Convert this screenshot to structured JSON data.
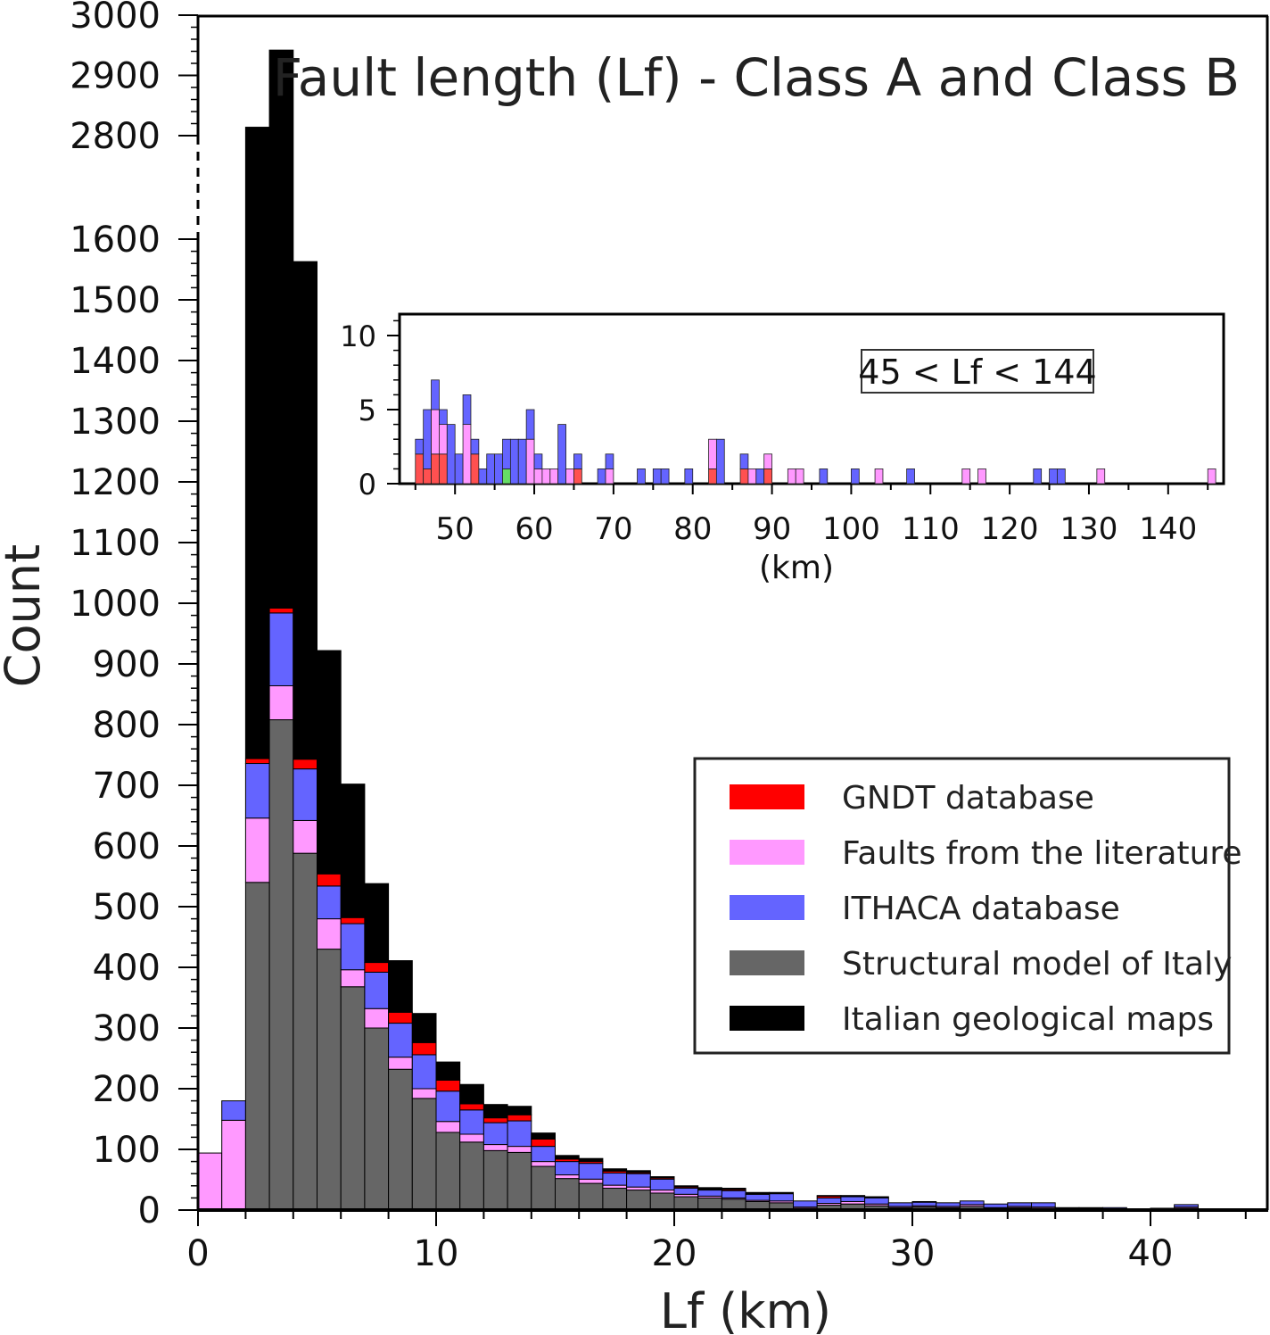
{
  "chart_data": [
    {
      "type": "bar",
      "stacked": true,
      "broken_y_axis": true,
      "title": "Fault length (Lf) - Class A and Class B",
      "xlabel": "Lf (km)",
      "ylabel": "Count",
      "xlim": [
        0,
        45
      ],
      "x_ticks": [
        0,
        10,
        20,
        30,
        40
      ],
      "y_ticks_lower": [
        0,
        100,
        200,
        300,
        400,
        500,
        600,
        700,
        800,
        900,
        1000,
        1100,
        1200,
        1300,
        1400,
        1500,
        1600
      ],
      "y_ticks_upper": [
        2800,
        2900,
        3000
      ],
      "bin_width": 1,
      "bin_starts": [
        0,
        1,
        2,
        3,
        4,
        5,
        6,
        7,
        8,
        9,
        10,
        11,
        12,
        13,
        14,
        15,
        16,
        17,
        18,
        19,
        20,
        21,
        22,
        23,
        24,
        25,
        26,
        27,
        28,
        29,
        30,
        31,
        32,
        33,
        34,
        35,
        36,
        37,
        38,
        39,
        40,
        41,
        42,
        43,
        44
      ],
      "series": [
        {
          "name": "Structural model of Italy",
          "color": "#666666",
          "values": [
            0,
            0,
            540,
            808,
            588,
            430,
            368,
            300,
            232,
            184,
            128,
            112,
            98,
            95,
            72,
            52,
            44,
            36,
            33,
            28,
            22,
            20,
            18,
            14,
            12,
            3,
            8,
            10,
            7,
            4,
            5,
            4,
            6,
            3,
            4,
            3,
            2,
            2,
            1,
            1,
            1,
            3,
            0,
            0,
            0
          ]
        },
        {
          "name": "Faults from the literature",
          "color": "#ff99ff",
          "values": [
            94,
            148,
            106,
            56,
            54,
            50,
            28,
            32,
            20,
            16,
            18,
            13,
            10,
            10,
            8,
            6,
            7,
            5,
            5,
            5,
            4,
            3,
            2,
            2,
            3,
            2,
            3,
            4,
            3,
            2,
            2,
            2,
            3,
            1,
            2,
            2,
            1,
            1,
            1,
            0,
            1,
            2,
            0,
            0,
            0
          ]
        },
        {
          "name": "ITHACA database",
          "color": "#6464ff",
          "values": [
            0,
            32,
            90,
            120,
            85,
            54,
            76,
            60,
            56,
            56,
            50,
            40,
            36,
            42,
            25,
            22,
            26,
            20,
            22,
            18,
            10,
            10,
            12,
            10,
            12,
            10,
            9,
            8,
            10,
            6,
            6,
            6,
            6,
            6,
            6,
            7,
            1,
            1,
            2,
            1,
            1,
            4,
            0,
            0,
            0
          ]
        },
        {
          "name": "GNDT database",
          "color": "#ff0000",
          "values": [
            0,
            0,
            8,
            8,
            16,
            20,
            10,
            16,
            18,
            20,
            18,
            10,
            8,
            10,
            12,
            4,
            3,
            3,
            2,
            2,
            2,
            1,
            2,
            1,
            0,
            0,
            3,
            1,
            0,
            0,
            0,
            0,
            0,
            0,
            0,
            0,
            0,
            0,
            0,
            0,
            0,
            0,
            0,
            0,
            0
          ]
        },
        {
          "name": "Italian geological maps",
          "color": "#000000",
          "values": [
            0,
            0,
            2070,
            1950,
            820,
            368,
            220,
            130,
            85,
            48,
            30,
            32,
            22,
            14,
            10,
            6,
            5,
            4,
            3,
            2,
            2,
            3,
            2,
            2,
            2,
            0,
            1,
            1,
            2,
            0,
            1,
            0,
            0,
            0,
            0,
            0,
            0,
            0,
            0,
            0,
            0,
            0,
            0,
            0,
            0
          ]
        }
      ],
      "legend": {
        "position": "right",
        "entries": [
          "GNDT database",
          "Faults from the literature",
          "ITHACA database",
          "Structural model of Italy",
          "Italian geological maps"
        ]
      }
    },
    {
      "type": "bar",
      "stacked": true,
      "inset": true,
      "annotation": "45 < Lf < 144",
      "xlabel": "(km)",
      "xlim": [
        43,
        147
      ],
      "ylim": [
        0,
        11
      ],
      "x_ticks": [
        50,
        60,
        70,
        80,
        90,
        100,
        110,
        120,
        130,
        140
      ],
      "y_ticks": [
        0,
        5,
        10
      ],
      "bin_width": 1,
      "bins": [
        {
          "x": 45,
          "red": 2,
          "pink": 0,
          "blue": 1,
          "green": 0
        },
        {
          "x": 46,
          "red": 1,
          "pink": 0,
          "blue": 4,
          "green": 0
        },
        {
          "x": 47,
          "red": 2,
          "pink": 3,
          "blue": 2,
          "green": 0
        },
        {
          "x": 48,
          "red": 2,
          "pink": 2,
          "blue": 1,
          "green": 0
        },
        {
          "x": 49,
          "red": 0,
          "pink": 0,
          "blue": 4,
          "green": 0
        },
        {
          "x": 50,
          "red": 0,
          "pink": 0,
          "blue": 2,
          "green": 0
        },
        {
          "x": 51,
          "red": 0,
          "pink": 4,
          "blue": 2,
          "green": 0
        },
        {
          "x": 52,
          "red": 2,
          "pink": 0,
          "blue": 1,
          "green": 0
        },
        {
          "x": 53,
          "red": 0,
          "pink": 0,
          "blue": 1,
          "green": 0
        },
        {
          "x": 54,
          "red": 0,
          "pink": 0,
          "blue": 2,
          "green": 0
        },
        {
          "x": 55,
          "red": 0,
          "pink": 0,
          "blue": 2,
          "green": 0
        },
        {
          "x": 56,
          "red": 0,
          "pink": 0,
          "blue": 2,
          "green": 1
        },
        {
          "x": 57,
          "red": 0,
          "pink": 0,
          "blue": 3,
          "green": 0
        },
        {
          "x": 58,
          "red": 0,
          "pink": 0,
          "blue": 3,
          "green": 0
        },
        {
          "x": 59,
          "red": 0,
          "pink": 3,
          "blue": 2,
          "green": 0
        },
        {
          "x": 60,
          "red": 0,
          "pink": 1,
          "blue": 1,
          "green": 0
        },
        {
          "x": 61,
          "red": 0,
          "pink": 1,
          "blue": 0,
          "green": 0
        },
        {
          "x": 62,
          "red": 0,
          "pink": 1,
          "blue": 0,
          "green": 0
        },
        {
          "x": 63,
          "red": 0,
          "pink": 0,
          "blue": 4,
          "green": 0
        },
        {
          "x": 64,
          "red": 0,
          "pink": 1,
          "blue": 0,
          "green": 0
        },
        {
          "x": 65,
          "red": 1,
          "pink": 0,
          "blue": 1,
          "green": 0
        },
        {
          "x": 68,
          "red": 0,
          "pink": 0,
          "blue": 1,
          "green": 0
        },
        {
          "x": 69,
          "red": 0,
          "pink": 1,
          "blue": 1,
          "green": 0
        },
        {
          "x": 73,
          "red": 0,
          "pink": 0,
          "blue": 1,
          "green": 0
        },
        {
          "x": 75,
          "red": 0,
          "pink": 0,
          "blue": 1,
          "green": 0
        },
        {
          "x": 76,
          "red": 0,
          "pink": 0,
          "blue": 1,
          "green": 0
        },
        {
          "x": 79,
          "red": 0,
          "pink": 0,
          "blue": 1,
          "green": 0
        },
        {
          "x": 82,
          "red": 1,
          "pink": 2,
          "blue": 0,
          "green": 0
        },
        {
          "x": 83,
          "red": 0,
          "pink": 0,
          "blue": 3,
          "green": 0
        },
        {
          "x": 86,
          "red": 1,
          "pink": 0,
          "blue": 1,
          "green": 0
        },
        {
          "x": 87,
          "red": 0,
          "pink": 1,
          "blue": 0,
          "green": 0
        },
        {
          "x": 88,
          "red": 0,
          "pink": 0,
          "blue": 1,
          "green": 0
        },
        {
          "x": 89,
          "red": 1,
          "pink": 1,
          "blue": 0,
          "green": 0
        },
        {
          "x": 92,
          "red": 0,
          "pink": 1,
          "blue": 0,
          "green": 0
        },
        {
          "x": 93,
          "red": 0,
          "pink": 1,
          "blue": 0,
          "green": 0
        },
        {
          "x": 96,
          "red": 0,
          "pink": 0,
          "blue": 1,
          "green": 0
        },
        {
          "x": 100,
          "red": 0,
          "pink": 0,
          "blue": 1,
          "green": 0
        },
        {
          "x": 103,
          "red": 0,
          "pink": 1,
          "blue": 0,
          "green": 0
        },
        {
          "x": 107,
          "red": 0,
          "pink": 0,
          "blue": 1,
          "green": 0
        },
        {
          "x": 114,
          "red": 0,
          "pink": 1,
          "blue": 0,
          "green": 0
        },
        {
          "x": 116,
          "red": 0,
          "pink": 1,
          "blue": 0,
          "green": 0
        },
        {
          "x": 123,
          "red": 0,
          "pink": 0,
          "blue": 1,
          "green": 0
        },
        {
          "x": 125,
          "red": 0,
          "pink": 0,
          "blue": 1,
          "green": 0
        },
        {
          "x": 126,
          "red": 0,
          "pink": 0,
          "blue": 1,
          "green": 0
        },
        {
          "x": 131,
          "red": 0,
          "pink": 1,
          "blue": 0,
          "green": 0
        },
        {
          "x": 145,
          "red": 0,
          "pink": 1,
          "blue": 0,
          "green": 0
        }
      ],
      "colors": {
        "red": "#ff5050",
        "pink": "#ff99ff",
        "blue": "#6464ff",
        "green": "#66dd66"
      }
    }
  ]
}
